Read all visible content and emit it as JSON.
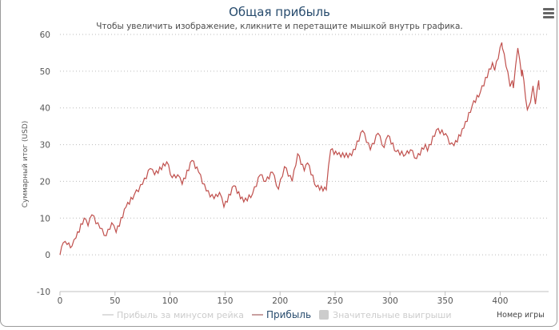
{
  "menu_icon": "hamburger-icon",
  "chart_data": {
    "type": "line",
    "title": "Общая прибыль",
    "subtitle": "Чтобы увеличить изображение, кликните и перетащите мышкой внутрь графика.",
    "xlabel": "Номер игры",
    "ylabel": "Суммарный итог (USD)",
    "xlim": [
      0,
      444
    ],
    "ylim": [
      -10,
      60
    ],
    "xticks": [
      "0",
      "50",
      "100",
      "150",
      "200",
      "250",
      "300",
      "350",
      "400"
    ],
    "yticks": [
      "60",
      "50",
      "40",
      "30",
      "20",
      "10",
      "0",
      "-10"
    ],
    "grid": true,
    "legend_position": "bottom",
    "legend": [
      {
        "name": "Прибыль за минусом рейка",
        "color": "#cccccc",
        "hidden": true,
        "marker": "line"
      },
      {
        "name": "Прибыль",
        "color": "#c0504d",
        "hidden": false,
        "marker": "line"
      },
      {
        "name": "Значительные выигрыши",
        "color": "#cccccc",
        "hidden": true,
        "marker": "box"
      }
    ],
    "series": [
      {
        "name": "Прибыль",
        "color": "#c0504d",
        "x": [
          0,
          3,
          6.5,
          11,
          14.5,
          22,
          25.5,
          29,
          36.4,
          42,
          47,
          51,
          60,
          67.6,
          75,
          82,
          86,
          97,
          102,
          107,
          111,
          120,
          126,
          133,
          140,
          145,
          149,
          158,
          167,
          175,
          182,
          187,
          193,
          198.5,
          204,
          211,
          216,
          222,
          225,
          233,
          242,
          244,
          246,
          252,
          265,
          275,
          282,
          289,
          294.5,
          298,
          305.5,
          314,
          318.5,
          324,
          332,
          334,
          342,
          350.5,
          354,
          358,
          367,
          374.5,
          382,
          393,
          395,
          401.5,
          402,
          407,
          409,
          411,
          412,
          416,
          419.6,
          420,
          424.7,
          427.6,
          429.8,
          432,
          435,
          435.6
        ],
        "y": [
          0,
          3.3,
          2.8,
          2.4,
          4.6,
          10,
          7.9,
          10.9,
          7.2,
          5.2,
          8.7,
          6.1,
          13,
          16.4,
          19.2,
          23.5,
          21.8,
          25.3,
          21,
          21.8,
          19.2,
          25.7,
          22.5,
          17.4,
          15.3,
          17,
          13,
          18.8,
          14.4,
          16.6,
          21.8,
          20,
          22.5,
          17.9,
          24,
          20,
          27.5,
          22.9,
          25,
          18.5,
          17.7,
          24.2,
          28.6,
          27.3,
          27,
          33.8,
          28.6,
          33.1,
          29.2,
          32.5,
          28.1,
          27.3,
          28.6,
          26.2,
          30.1,
          28.3,
          34,
          33,
          30.1,
          29.7,
          34.5,
          40.6,
          44.3,
          52.3,
          50.2,
          57.8,
          56.3,
          49.7,
          45.8,
          47.5,
          45.4,
          56.3,
          48.6,
          50.4,
          39.5,
          41.6,
          46,
          41,
          47.5,
          44.9
        ]
      }
    ]
  }
}
